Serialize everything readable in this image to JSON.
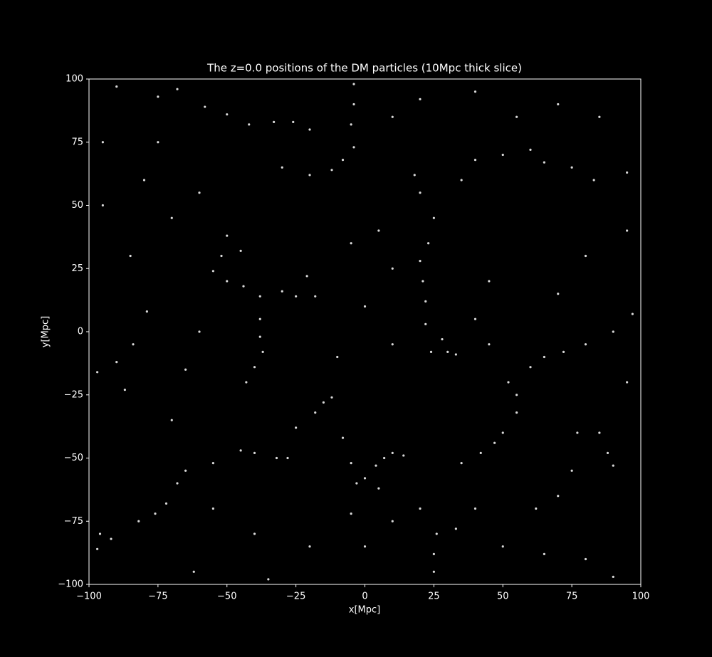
{
  "chart_data": {
    "type": "scatter",
    "title": "The z=0.0 positions of the DM particles (10Mpc thick slice)",
    "x_label": "x[Mpc]",
    "y_label": "y[Mpc]",
    "color": "#ffffff",
    "background": "#000000",
    "xlim": [
      -100,
      100
    ],
    "ylim": [
      -100,
      100
    ],
    "xticks": [
      {
        "value": -100,
        "label": "−100"
      },
      {
        "value": -75,
        "label": "−75"
      },
      {
        "value": -50,
        "label": "−50"
      },
      {
        "value": -25,
        "label": "−25"
      },
      0,
      25,
      50,
      75,
      100
    ],
    "yticks": [
      {
        "value": -100,
        "label": "−100"
      },
      {
        "value": -75,
        "label": "−75"
      },
      {
        "value": -50,
        "label": "−50"
      },
      {
        "value": -25,
        "label": "−25"
      },
      0,
      25,
      50,
      75,
      100
    ],
    "x": [
      -90,
      -75,
      -68,
      -58,
      -50,
      -42,
      -33,
      -26,
      -20,
      -4,
      -4,
      -5,
      -4,
      -8,
      -12,
      -20,
      -50,
      -45,
      -52,
      -55,
      -50,
      -44,
      -38,
      -30,
      -25,
      -18,
      -21,
      -38,
      -38,
      -37,
      -40,
      -43,
      -79,
      -84,
      -90,
      -97,
      -87,
      22,
      21,
      20,
      23,
      25,
      20,
      18,
      22,
      24,
      30,
      33,
      28,
      35,
      40,
      50,
      60,
      65,
      75,
      83,
      95,
      60,
      65,
      72,
      80,
      90,
      97,
      55,
      52,
      55,
      50,
      47,
      42,
      35,
      7,
      10,
      14,
      4,
      0,
      -3,
      5,
      -5,
      -15,
      -12,
      -18,
      -25,
      -8,
      -32,
      -28,
      -40,
      -45,
      -55,
      -65,
      -68,
      -72,
      -76,
      -82,
      -92,
      -96,
      -97,
      25,
      25,
      26,
      20,
      33,
      40,
      77,
      85,
      88,
      90,
      75,
      70,
      62,
      -5,
      -35,
      -62,
      90,
      80,
      -80,
      -70,
      -85,
      -60,
      -30,
      10,
      20,
      40,
      55,
      70,
      85,
      95,
      80,
      70,
      45,
      40,
      10,
      0,
      -10,
      -60,
      -65,
      -70,
      -55,
      -40,
      -20,
      0,
      10,
      50,
      65,
      95,
      -95,
      -95,
      -75,
      45,
      10,
      5,
      -5
    ],
    "values": [
      97,
      93,
      96,
      89,
      86,
      82,
      83,
      83,
      80,
      98,
      90,
      82,
      73,
      68,
      64,
      62,
      38,
      32,
      30,
      24,
      20,
      18,
      14,
      16,
      14,
      14,
      22,
      5,
      -2,
      -8,
      -14,
      -20,
      8,
      -5,
      -12,
      -16,
      -23,
      12,
      20,
      28,
      35,
      45,
      55,
      62,
      3,
      -8,
      -8,
      -9,
      -3,
      60,
      68,
      70,
      72,
      67,
      65,
      60,
      63,
      -14,
      -10,
      -8,
      -5,
      0,
      7,
      -25,
      -20,
      -32,
      -40,
      -44,
      -48,
      -52,
      -50,
      -48,
      -49,
      -53,
      -58,
      -60,
      -62,
      -52,
      -28,
      -26,
      -32,
      -38,
      -42,
      -50,
      -50,
      -48,
      -47,
      -52,
      -55,
      -60,
      -68,
      -72,
      -75,
      -82,
      -80,
      -86,
      -88,
      -95,
      -80,
      -70,
      -78,
      -70,
      -40,
      -40,
      -48,
      -53,
      -55,
      -65,
      -70,
      -72,
      -98,
      -95,
      -97,
      -90,
      60,
      45,
      30,
      55,
      65,
      85,
      92,
      95,
      85,
      90,
      85,
      40,
      30,
      15,
      20,
      5,
      -5,
      10,
      -10,
      0,
      -15,
      -35,
      -70,
      -80,
      -85,
      -85,
      -75,
      -85,
      -88,
      -20,
      50,
      75,
      75,
      -5,
      25,
      40,
      35
    ]
  }
}
